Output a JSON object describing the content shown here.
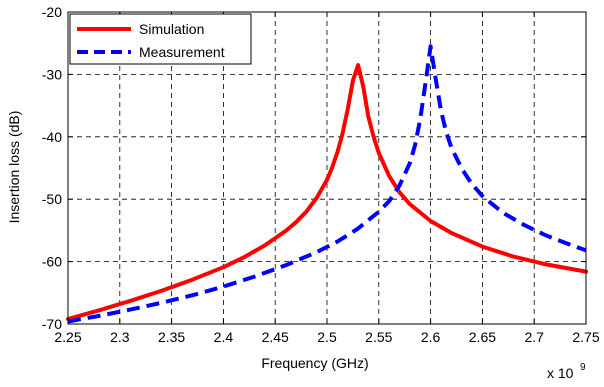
{
  "chart_data": {
    "type": "line",
    "title": "",
    "xlabel": "Frequency (GHz)",
    "ylabel": "Insertion loss (dB)",
    "x_multiplier_label": "x 10",
    "x_multiplier_exponent": "9",
    "xlim": [
      2.25,
      2.75
    ],
    "ylim": [
      -70,
      -20
    ],
    "xticks": [
      2.25,
      2.3,
      2.35,
      2.4,
      2.45,
      2.5,
      2.55,
      2.6,
      2.65,
      2.7,
      2.75
    ],
    "xtick_labels": [
      "2.25",
      "2.3",
      "2.35",
      "2.4",
      "2.45",
      "2.5",
      "2.55",
      "2.6",
      "2.65",
      "2.7",
      "2.75"
    ],
    "yticks": [
      -70,
      -60,
      -50,
      -40,
      -30,
      -20
    ],
    "ytick_labels": [
      "-70",
      "-60",
      "-50",
      "-40",
      "-30",
      "-20"
    ],
    "grid": true,
    "legend_position": "top-left",
    "series": [
      {
        "name": "Simulation",
        "color": "#ff0000",
        "line_style": "solid",
        "x": [
          2.25,
          2.28,
          2.31,
          2.34,
          2.37,
          2.4,
          2.42,
          2.44,
          2.46,
          2.47,
          2.48,
          2.49,
          2.5,
          2.505,
          2.51,
          2.515,
          2.52,
          2.525,
          2.53,
          2.535,
          2.54,
          2.545,
          2.55,
          2.56,
          2.57,
          2.58,
          2.6,
          2.62,
          2.65,
          2.68,
          2.71,
          2.75
        ],
        "y": [
          -69.2,
          -67.8,
          -66.3,
          -64.7,
          -62.9,
          -60.9,
          -59.3,
          -57.4,
          -55.1,
          -53.7,
          -52.0,
          -49.8,
          -46.9,
          -44.9,
          -42.5,
          -39.5,
          -35.6,
          -31.0,
          -28.5,
          -32.0,
          -36.8,
          -40.0,
          -42.6,
          -46.3,
          -48.9,
          -50.8,
          -53.5,
          -55.4,
          -57.6,
          -59.2,
          -60.4,
          -61.6
        ]
      },
      {
        "name": "Measurement",
        "color": "#0000ff",
        "line_style": "dashed",
        "x": [
          2.25,
          2.28,
          2.31,
          2.34,
          2.37,
          2.4,
          2.43,
          2.46,
          2.49,
          2.51,
          2.53,
          2.55,
          2.56,
          2.57,
          2.58,
          2.585,
          2.59,
          2.595,
          2.6,
          2.605,
          2.61,
          2.615,
          2.62,
          2.63,
          2.64,
          2.65,
          2.67,
          2.69,
          2.71,
          2.73,
          2.75
        ],
        "y": [
          -69.6,
          -68.7,
          -67.7,
          -66.6,
          -65.4,
          -64.0,
          -62.4,
          -60.6,
          -58.5,
          -56.8,
          -54.7,
          -52.0,
          -50.3,
          -47.8,
          -44.2,
          -41.3,
          -37.2,
          -31.5,
          -25.5,
          -30.8,
          -35.8,
          -39.2,
          -41.7,
          -45.1,
          -47.6,
          -49.5,
          -52.2,
          -54.1,
          -55.7,
          -57.0,
          -58.2
        ]
      }
    ]
  }
}
